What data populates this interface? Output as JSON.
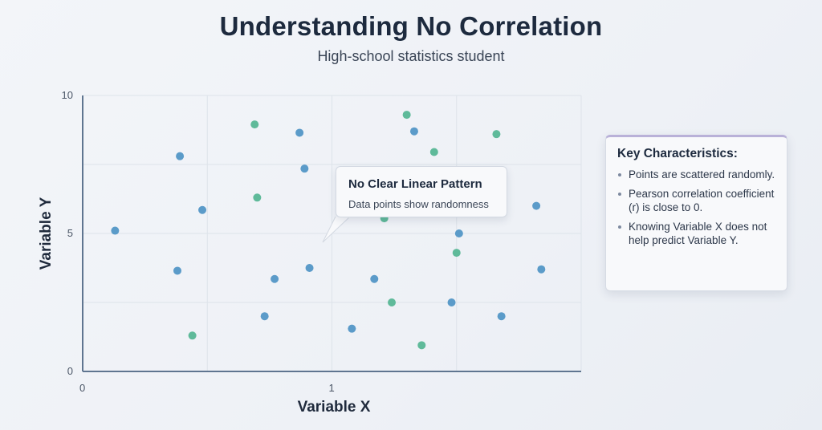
{
  "header": {
    "title": "Understanding No Correlation",
    "subtitle": "High-school statistics student"
  },
  "callout": {
    "title": "No Clear Linear Pattern",
    "text": "Data points show randomness"
  },
  "panel": {
    "title": "Key Characteristics:",
    "items": [
      "Points are scattered randomly.",
      "Pearson correlation coefficient (r) is close to 0.",
      "Knowing Variable X does not help predict Variable Y."
    ]
  },
  "colors": {
    "blue": "#5b9bc9",
    "green": "#5fba9a",
    "axis": "#5f7590",
    "grid": "#dde3ea"
  },
  "chart_data": {
    "type": "scatter",
    "title": "Understanding No Correlation",
    "subtitle": "High-school statistics student",
    "xlabel": "Variable X",
    "ylabel": "Variable Y",
    "xlim": [
      0,
      2
    ],
    "ylim": [
      0,
      10
    ],
    "xticks": [
      0,
      1
    ],
    "yticks": [
      0,
      5,
      10
    ],
    "grid": true,
    "series": [
      {
        "color": "#5b9bc9",
        "x": [
          0.13,
          0.39,
          0.38,
          0.48,
          0.73,
          0.77,
          0.87,
          0.89,
          0.91,
          1.08,
          1.17,
          1.33,
          1.48,
          1.51,
          1.68,
          1.82,
          1.84
        ],
        "y": [
          5.1,
          7.8,
          3.65,
          5.85,
          2.0,
          3.35,
          8.65,
          7.35,
          3.75,
          1.55,
          3.35,
          8.7,
          2.5,
          5.0,
          2.0,
          6.0,
          3.7
        ]
      },
      {
        "color": "#5fba9a",
        "x": [
          0.44,
          0.69,
          0.7,
          1.21,
          1.24,
          1.3,
          1.36,
          1.41,
          1.5,
          1.66
        ],
        "y": [
          1.3,
          8.95,
          6.3,
          5.55,
          2.5,
          9.3,
          0.95,
          7.95,
          4.3,
          8.6
        ]
      }
    ]
  }
}
